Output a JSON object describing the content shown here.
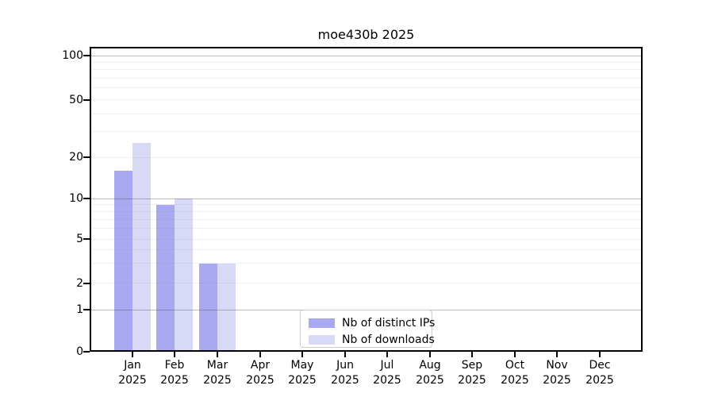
{
  "chart_data": {
    "type": "bar",
    "title": "moe430b 2025",
    "categories": [
      {
        "month": "Jan",
        "year": "2025"
      },
      {
        "month": "Feb",
        "year": "2025"
      },
      {
        "month": "Mar",
        "year": "2025"
      },
      {
        "month": "Apr",
        "year": "2025"
      },
      {
        "month": "May",
        "year": "2025"
      },
      {
        "month": "Jun",
        "year": "2025"
      },
      {
        "month": "Jul",
        "year": "2025"
      },
      {
        "month": "Aug",
        "year": "2025"
      },
      {
        "month": "Sep",
        "year": "2025"
      },
      {
        "month": "Oct",
        "year": "2025"
      },
      {
        "month": "Nov",
        "year": "2025"
      },
      {
        "month": "Dec",
        "year": "2025"
      }
    ],
    "series": [
      {
        "name": "Nb of distinct IPs",
        "color": "#a9a9f2",
        "values": [
          16,
          9,
          3,
          0,
          0,
          0,
          0,
          0,
          0,
          0,
          0,
          0
        ]
      },
      {
        "name": "Nb of downloads",
        "color": "#d8d8f7",
        "values": [
          25,
          10,
          3,
          0,
          0,
          0,
          0,
          0,
          0,
          0,
          0,
          0
        ]
      }
    ],
    "y_axis": {
      "scale": "log-like",
      "tick_labels": [
        "100",
        "50",
        "20",
        "10",
        "5",
        "2",
        "1",
        "0"
      ],
      "tick_values": [
        100,
        50,
        20,
        10,
        5,
        2,
        1,
        0
      ],
      "major_gridlines": [
        1,
        10,
        100
      ],
      "minor_gridlines": [
        2,
        3,
        4,
        5,
        6,
        7,
        8,
        9,
        20,
        30,
        40,
        50,
        60,
        70,
        80,
        90
      ],
      "ylim": [
        0,
        115
      ]
    },
    "legend": {
      "position": "bottom-center"
    },
    "grid": "on"
  }
}
